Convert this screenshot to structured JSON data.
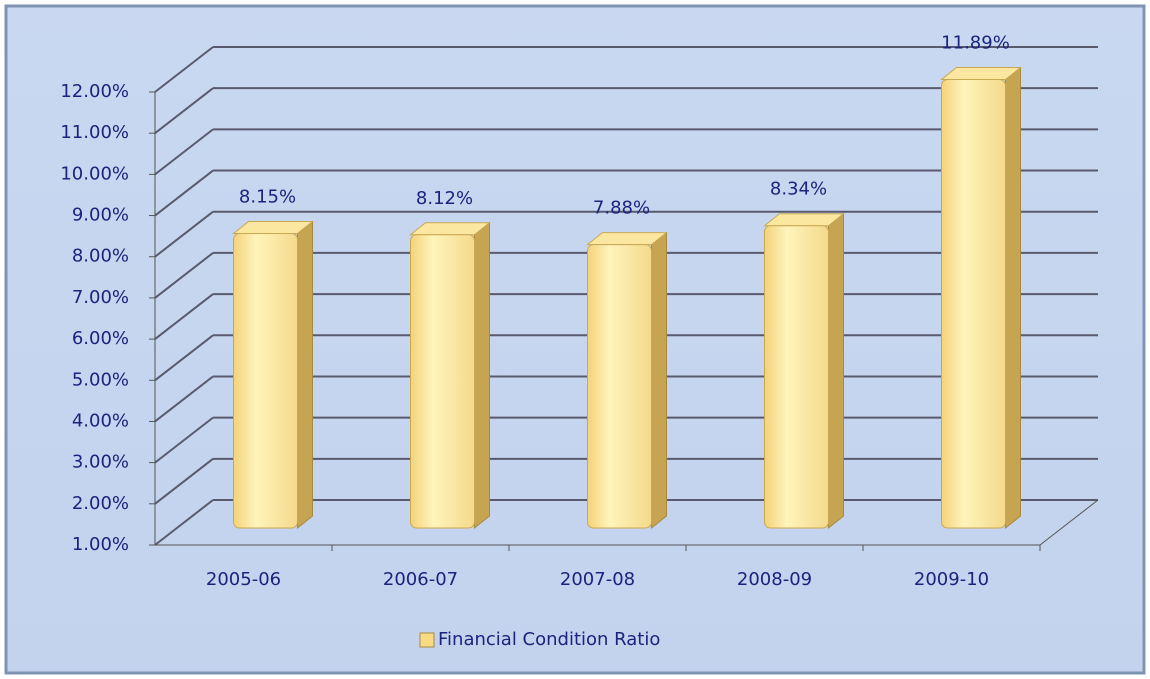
{
  "chart_data": {
    "type": "bar3d",
    "categories": [
      "2005-06",
      "2006-07",
      "2007-08",
      "2008-09",
      "2009-10"
    ],
    "series": [
      {
        "name": "Financial Condition Ratio",
        "color": "#f7dc85",
        "values": [
          8.15,
          8.12,
          7.88,
          8.34,
          11.89
        ],
        "value_labels": [
          "8.15%",
          "8.12%",
          "7.88%",
          "8.34%",
          "11.89%"
        ]
      }
    ],
    "ylim": [
      1,
      12
    ],
    "yticks": [
      {
        "value": 1,
        "label": "1.00%"
      },
      {
        "value": 2,
        "label": "2.00%"
      },
      {
        "value": 3,
        "label": "3.00%"
      },
      {
        "value": 4,
        "label": "4.00%"
      },
      {
        "value": 5,
        "label": "5.00%"
      },
      {
        "value": 6,
        "label": "6.00%"
      },
      {
        "value": 7,
        "label": "7.00%"
      },
      {
        "value": 8,
        "label": "8.00%"
      },
      {
        "value": 9,
        "label": "9.00%"
      },
      {
        "value": 10,
        "label": "10.00%"
      },
      {
        "value": 11,
        "label": "11.00%"
      },
      {
        "value": 12,
        "label": "12.00%"
      }
    ],
    "grid": true,
    "legend": "bottom"
  }
}
